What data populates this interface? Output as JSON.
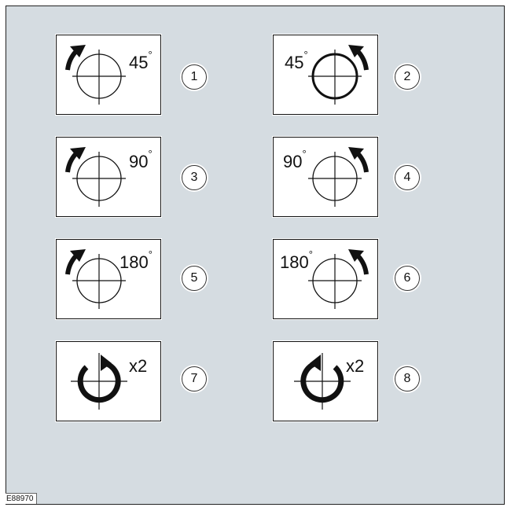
{
  "background_color": "#d5dce1",
  "figure_id": "E88970",
  "panels": [
    {
      "number": "1",
      "angle": "45",
      "degree_symbol": "°",
      "arrow": "clockwise",
      "circle": "thin",
      "label_side": "right"
    },
    {
      "number": "2",
      "angle": "45",
      "degree_symbol": "°",
      "arrow": "counterclockwise",
      "circle": "thick",
      "label_side": "left"
    },
    {
      "number": "3",
      "angle": "90",
      "degree_symbol": "°",
      "arrow": "clockwise",
      "circle": "thin",
      "label_side": "right"
    },
    {
      "number": "4",
      "angle": "90",
      "degree_symbol": "°",
      "arrow": "counterclockwise",
      "circle": "thin",
      "label_side": "left"
    },
    {
      "number": "5",
      "angle": "180",
      "degree_symbol": "°",
      "arrow": "clockwise",
      "circle": "thin",
      "label_side": "right"
    },
    {
      "number": "6",
      "angle": "180",
      "degree_symbol": "°",
      "arrow": "counterclockwise",
      "circle": "thin",
      "label_side": "left"
    },
    {
      "number": "7",
      "multiplier": "x2",
      "arrow": "clockwise-full-turn",
      "label_side": "right"
    },
    {
      "number": "8",
      "multiplier": "x2",
      "arrow": "counterclockwise-full-turn",
      "label_side": "right"
    }
  ]
}
